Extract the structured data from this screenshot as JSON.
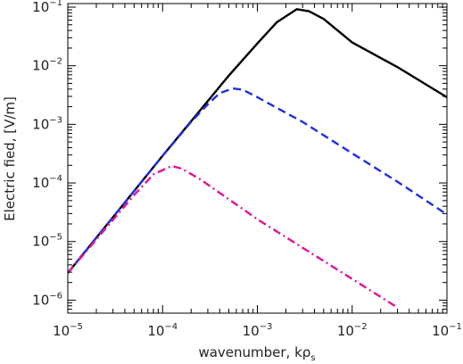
{
  "chart_data": {
    "type": "line",
    "xscale": "log",
    "yscale": "log",
    "xlim": [
      1e-05,
      0.1
    ],
    "ylim": [
      6e-07,
      0.115
    ],
    "xlabel": "wavenumber, kρ",
    "xlabel_subscript": "s",
    "ylabel": "Electric fied, [V/m]",
    "grid": false,
    "x_ticks": [
      {
        "value": 1e-05,
        "base": "10",
        "exp": "−5"
      },
      {
        "value": 0.0001,
        "base": "10",
        "exp": "−4"
      },
      {
        "value": 0.001,
        "base": "10",
        "exp": "−3"
      },
      {
        "value": 0.01,
        "base": "10",
        "exp": "−2"
      },
      {
        "value": 0.1,
        "base": "10",
        "exp": "−1"
      }
    ],
    "y_ticks": [
      {
        "value": 1e-06,
        "base": "10",
        "exp": "−6"
      },
      {
        "value": 1e-05,
        "base": "10",
        "exp": "−5"
      },
      {
        "value": 0.0001,
        "base": "10",
        "exp": "−4"
      },
      {
        "value": 0.001,
        "base": "10",
        "exp": "−3"
      },
      {
        "value": 0.01,
        "base": "10",
        "exp": "−2"
      },
      {
        "value": 0.1,
        "base": "10",
        "exp": "−1"
      }
    ],
    "series": [
      {
        "color": "#000000",
        "dash": "solid",
        "points": [
          [
            1e-05,
            2.9e-06
          ],
          [
            0.0001,
            0.00029
          ],
          [
            0.0005,
            0.0068
          ],
          [
            0.001,
            0.024
          ],
          [
            0.0016,
            0.055
          ],
          [
            0.0026,
            0.092
          ],
          [
            0.0035,
            0.085
          ],
          [
            0.005,
            0.063
          ],
          [
            0.01,
            0.025
          ],
          [
            0.03,
            0.0095
          ],
          [
            0.1,
            0.0029
          ]
        ]
      },
      {
        "color": "#1f2fe0",
        "dash": "dashed",
        "points": [
          [
            1e-05,
            2.9e-06
          ],
          [
            0.0001,
            0.00029
          ],
          [
            0.0002,
            0.0011
          ],
          [
            0.0003,
            0.0022
          ],
          [
            0.0004,
            0.0034
          ],
          [
            0.00055,
            0.0041
          ],
          [
            0.0007,
            0.0039
          ],
          [
            0.001,
            0.0029
          ],
          [
            0.003,
            0.0011
          ],
          [
            0.01,
            0.00032
          ],
          [
            0.03,
            0.000105
          ],
          [
            0.1,
            2.9e-05
          ]
        ]
      },
      {
        "color": "#e0149b",
        "dash": "dashdot",
        "points": [
          [
            1e-05,
            2.9e-06
          ],
          [
            5e-05,
            6.2e-05
          ],
          [
            8e-05,
            0.00014
          ],
          [
            0.000125,
            0.000195
          ],
          [
            0.00016,
            0.000175
          ],
          [
            0.00025,
            0.000115
          ],
          [
            0.001,
            2.4e-05
          ],
          [
            0.01,
            2.3e-06
          ],
          [
            0.03,
            7.5e-07
          ]
        ]
      }
    ]
  }
}
